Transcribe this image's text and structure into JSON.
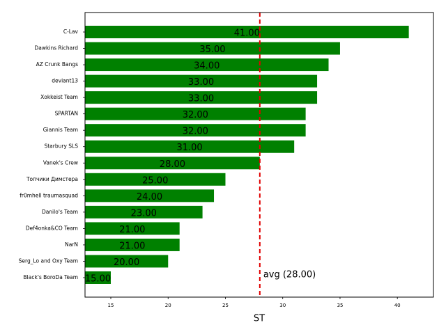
{
  "chart_data": {
    "type": "barh",
    "x_label": "ST",
    "categories": [
      "C-Lav",
      "Dawkins Richard",
      "AZ Crunk Bangs",
      "deviant13",
      "Xokkeist Team",
      "SPARTAN",
      "Giannis Team",
      "Starbury SLS",
      "Vanek's Crew",
      "Топчики Димстера",
      "fr0mhell traumasquad",
      "Danilo's Team",
      "Def4onka&CO Team",
      "NarN",
      "Serg_Lo and Oxy Team",
      "Black's BoroDa Team"
    ],
    "values": [
      41,
      35,
      34,
      33,
      33,
      32,
      32,
      31,
      28,
      25,
      24,
      23,
      21,
      21,
      20,
      15
    ],
    "value_labels": [
      "41.00",
      "35.00",
      "34.00",
      "33.00",
      "33.00",
      "32.00",
      "32.00",
      "31.00",
      "28.00",
      "25.00",
      "24.00",
      "23.00",
      "21.00",
      "21.00",
      "20.00",
      "15.00"
    ],
    "color": "#008000",
    "xlim": [
      12.75,
      43.15
    ],
    "xticks": [
      15,
      20,
      25,
      30,
      35,
      40
    ],
    "reference_line": {
      "value": 28,
      "label": "avg (28.00)",
      "color": "#e00000"
    }
  }
}
